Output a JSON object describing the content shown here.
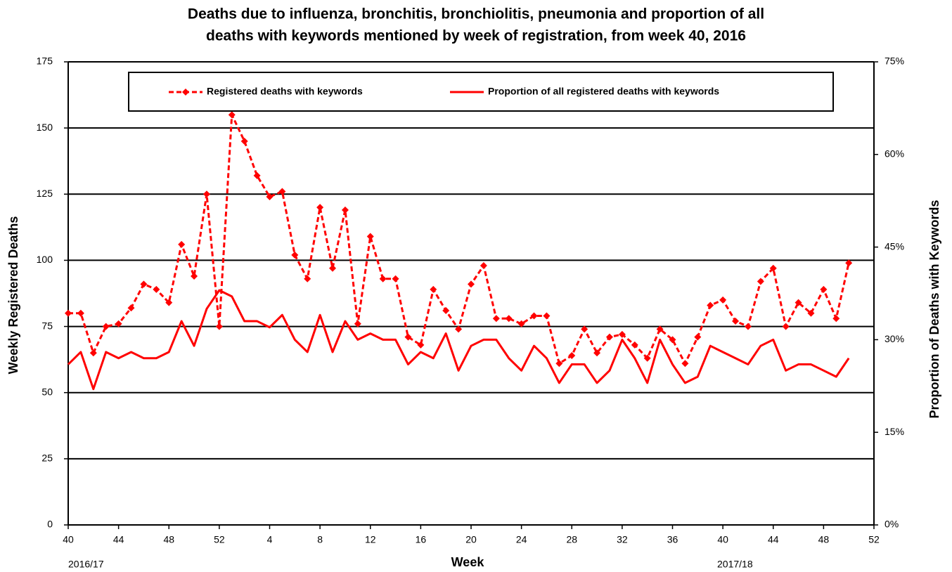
{
  "chart_data": {
    "type": "line",
    "title": [
      "Deaths due to influenza, bronchitis, bronchiolitis, pneumonia and proportion of all",
      "deaths with keywords mentioned by week of registration, from week 40, 2016"
    ],
    "x_label": "Week",
    "y_label": "Weekly Registered Deaths",
    "y2_label": "Proportion of Deaths with Keywords",
    "annotations": [
      "2016/17",
      "2017/18"
    ],
    "xlim": [
      0,
      64
    ],
    "xticks": [
      {
        "value": 0,
        "label": "40"
      },
      {
        "value": 4,
        "label": "44"
      },
      {
        "value": 8,
        "label": "48"
      },
      {
        "value": 12,
        "label": "52"
      },
      {
        "value": 16,
        "label": "4"
      },
      {
        "value": 20,
        "label": "8"
      },
      {
        "value": 24,
        "label": "12"
      },
      {
        "value": 28,
        "label": "16"
      },
      {
        "value": 32,
        "label": "20"
      },
      {
        "value": 36,
        "label": "24"
      },
      {
        "value": 40,
        "label": "28"
      },
      {
        "value": 44,
        "label": "32"
      },
      {
        "value": 48,
        "label": "36"
      },
      {
        "value": 52,
        "label": "40"
      },
      {
        "value": 56,
        "label": "44"
      },
      {
        "value": 60,
        "label": "48"
      },
      {
        "value": 64,
        "label": "52"
      }
    ],
    "ylim": [
      0,
      175
    ],
    "yticks": [
      0,
      25,
      50,
      75,
      100,
      125,
      150,
      175
    ],
    "y2lim": [
      0,
      75
    ],
    "y2ticks": [
      {
        "value": 0,
        "label": "0%"
      },
      {
        "value": 15,
        "label": "15%"
      },
      {
        "value": 30,
        "label": "30%"
      },
      {
        "value": 45,
        "label": "45%"
      },
      {
        "value": 60,
        "label": "60%"
      },
      {
        "value": 75,
        "label": "75%"
      }
    ],
    "grid": true,
    "legend": "top",
    "series": [
      {
        "name": "Registered deaths with keywords",
        "color": "#ff0000",
        "style": "dashed",
        "marker": "diamond",
        "values": [
          80,
          80,
          65,
          75,
          76,
          82,
          91,
          89,
          84,
          106,
          94,
          125,
          75,
          155,
          145,
          132,
          124,
          126,
          102,
          93,
          120,
          97,
          119,
          76,
          109,
          93,
          93,
          71,
          68,
          89,
          81,
          74,
          91,
          98,
          78,
          78,
          76,
          79,
          79,
          61,
          64,
          74,
          65,
          71,
          72,
          68,
          63,
          74,
          70,
          61,
          71,
          83,
          85,
          77,
          75,
          92,
          97,
          75,
          84,
          80,
          89,
          78,
          99
        ]
      },
      {
        "name": "Proportion of all registered deaths with keywords",
        "color": "#ff0000",
        "style": "solid",
        "axis": "y2",
        "values": [
          26,
          28,
          22,
          28,
          27,
          28,
          27,
          27,
          28,
          33,
          29,
          35,
          38,
          37,
          33,
          33,
          32,
          34,
          30,
          28,
          34,
          28,
          33,
          30,
          31,
          30,
          30,
          26,
          28,
          27,
          31,
          25,
          29,
          30,
          30,
          27,
          25,
          29,
          27,
          23,
          26,
          26,
          23,
          25,
          30,
          27,
          23,
          30,
          26,
          23,
          24,
          29,
          28,
          27,
          26,
          29,
          30,
          25,
          26,
          26,
          25,
          24,
          27
        ]
      }
    ]
  }
}
